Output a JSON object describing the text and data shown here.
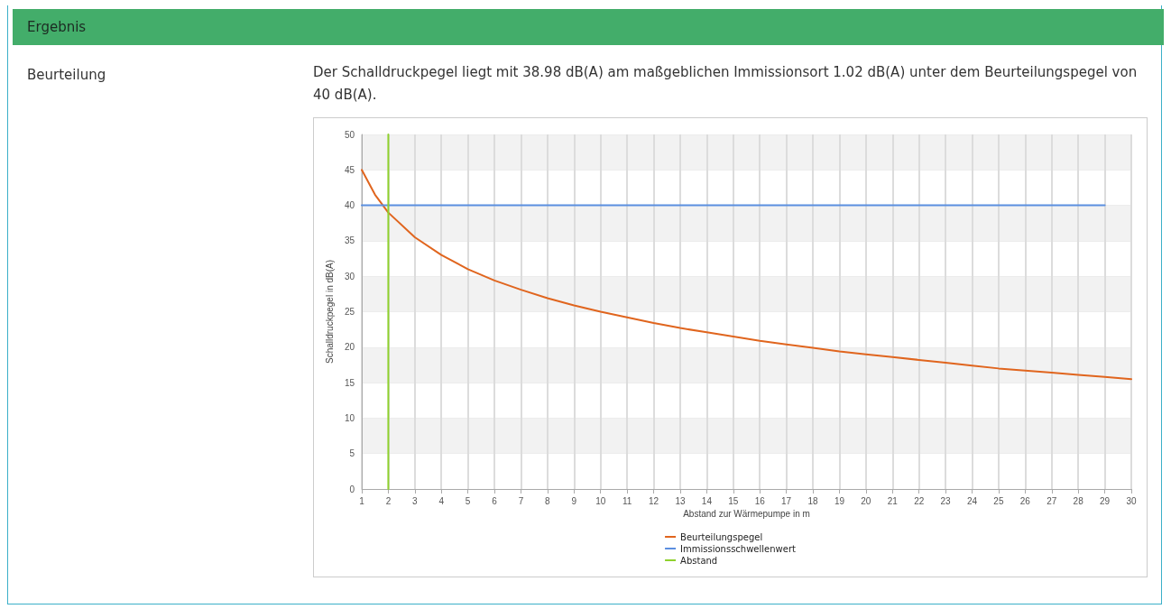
{
  "chart_data": {
    "type": "line",
    "title": "Ergebnis",
    "annotations": [
      "Beurteilung",
      "Der Schalldruckpegel liegt mit 38.98 dB(A) am maßgeblichen Immissionsort 1.02 dB(A) unter dem Beurteilungspegel von 40 dB(A)."
    ],
    "xlabel": "Abstand zur Wärmepumpe in m",
    "ylabel": "Schalldruckpegel in dB(A)",
    "xlim": [
      1,
      30
    ],
    "xticks": [
      1,
      2,
      3,
      4,
      5,
      6,
      7,
      8,
      9,
      10,
      11,
      12,
      13,
      14,
      15,
      16,
      17,
      18,
      19,
      20,
      21,
      22,
      23,
      24,
      25,
      26,
      27,
      28,
      29,
      30
    ],
    "ylim": [
      0,
      50
    ],
    "yticks": [
      0,
      5,
      10,
      15,
      20,
      25,
      30,
      35,
      40,
      45,
      50
    ],
    "grid": true,
    "legend": "bottom",
    "marker": "none",
    "line_style": "solid",
    "series": [
      {
        "name": "Beurteilungspegel",
        "color": "#e0651e",
        "x": [
          1,
          1.5,
          2,
          3,
          4,
          5,
          6,
          7,
          8,
          9,
          10,
          11,
          12,
          13,
          14,
          15,
          16,
          17,
          18,
          19,
          20,
          21,
          22,
          23,
          24,
          25,
          26,
          27,
          28,
          29,
          30
        ],
        "values": [
          45,
          41.5,
          38.98,
          35.5,
          33,
          31,
          29.4,
          28.1,
          26.9,
          25.9,
          25,
          24.2,
          23.4,
          22.7,
          22.1,
          21.5,
          20.9,
          20.4,
          19.9,
          19.4,
          19,
          18.6,
          18.2,
          17.8,
          17.4,
          17,
          16.7,
          16.4,
          16.1,
          15.8,
          15.5
        ]
      },
      {
        "name": "Immissionsschwellenwert",
        "color": "#5b8fe0",
        "x": [
          1,
          29
        ],
        "values": [
          40,
          40
        ]
      },
      {
        "name": "Abstand",
        "color": "#8fd12e",
        "x": [
          2,
          2
        ],
        "values": [
          0,
          50
        ]
      }
    ]
  }
}
